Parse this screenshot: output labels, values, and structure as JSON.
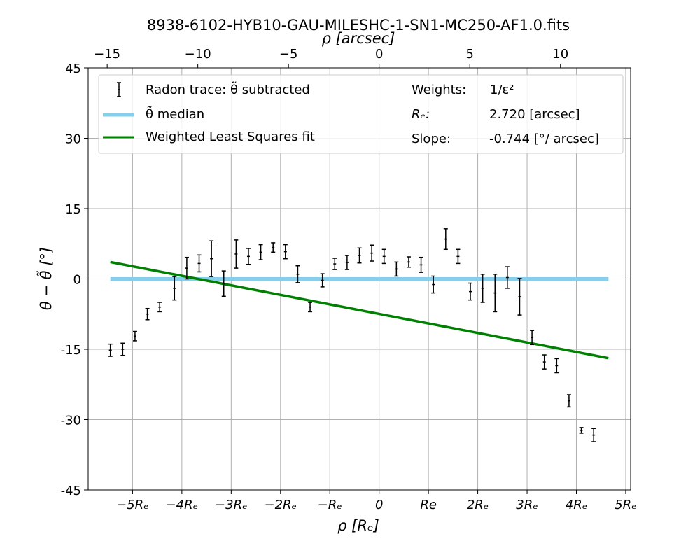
{
  "chart_data": {
    "type": "scatter",
    "title": "8938-6102-HYB10-GAU-MILESHC-1-SN1-MC250-AF1.0.fits",
    "top_axis": {
      "label": "ρ [arcsec]",
      "ticks": [
        {
          "value": -15,
          "label": "−15"
        },
        {
          "value": -10,
          "label": "−10"
        },
        {
          "value": -5,
          "label": "−5"
        },
        {
          "value": 0,
          "label": "0"
        },
        {
          "value": 5,
          "label": "5"
        },
        {
          "value": 10,
          "label": "10"
        }
      ]
    },
    "xlabel": "ρ [Rₑ]",
    "ylabel": "θ − θ̃ [°]",
    "xlim": [
      -5.9,
      5.1
    ],
    "ylim": [
      -45,
      45
    ],
    "x_ticks": [
      {
        "value": -5,
        "label": "−5Rₑ"
      },
      {
        "value": -4,
        "label": "−4Rₑ"
      },
      {
        "value": -3,
        "label": "−3Rₑ"
      },
      {
        "value": -2,
        "label": "−2Rₑ"
      },
      {
        "value": -1,
        "label": "−Rₑ"
      },
      {
        "value": 0,
        "label": "0"
      },
      {
        "value": 1,
        "label": "Re"
      },
      {
        "value": 2,
        "label": "2Rₑ"
      },
      {
        "value": 3,
        "label": "3Rₑ"
      },
      {
        "value": 4,
        "label": "4Rₑ"
      },
      {
        "value": 5,
        "label": "5Rₑ"
      }
    ],
    "y_ticks": [
      {
        "value": 45,
        "label": "45"
      },
      {
        "value": 30,
        "label": "30"
      },
      {
        "value": 15,
        "label": "15"
      },
      {
        "value": 0,
        "label": "0"
      },
      {
        "value": -15,
        "label": "-15"
      },
      {
        "value": -30,
        "label": "-30"
      },
      {
        "value": -45,
        "label": "-45"
      }
    ],
    "grid": true,
    "legend_position": "top",
    "series": [
      {
        "name": "Radon trace: θ̃ subtracted",
        "kind": "errorbar",
        "color": "#000000",
        "points": [
          {
            "x": -5.45,
            "y": -15.2,
            "err": 1.3
          },
          {
            "x": -5.2,
            "y": -15.0,
            "err": 1.3
          },
          {
            "x": -4.95,
            "y": -12.2,
            "err": 1.0
          },
          {
            "x": -4.7,
            "y": -7.5,
            "err": 1.2
          },
          {
            "x": -4.45,
            "y": -6.0,
            "err": 1.0
          },
          {
            "x": -4.15,
            "y": -2.0,
            "err": 2.5
          },
          {
            "x": -3.9,
            "y": 2.3,
            "err": 2.3
          },
          {
            "x": -3.65,
            "y": 3.3,
            "err": 1.8
          },
          {
            "x": -3.4,
            "y": 4.3,
            "err": 3.8
          },
          {
            "x": -3.15,
            "y": -1.0,
            "err": 2.7
          },
          {
            "x": -2.9,
            "y": 5.3,
            "err": 3.0
          },
          {
            "x": -2.65,
            "y": 4.8,
            "err": 1.7
          },
          {
            "x": -2.4,
            "y": 5.7,
            "err": 1.6
          },
          {
            "x": -2.15,
            "y": 6.7,
            "err": 1.0
          },
          {
            "x": -1.9,
            "y": 5.8,
            "err": 1.5
          },
          {
            "x": -1.65,
            "y": 1.0,
            "err": 1.8
          },
          {
            "x": -1.4,
            "y": -6.0,
            "err": 1.0
          },
          {
            "x": -1.15,
            "y": -0.3,
            "err": 1.4
          },
          {
            "x": -0.9,
            "y": 3.2,
            "err": 1.2
          },
          {
            "x": -0.65,
            "y": 3.5,
            "err": 1.5
          },
          {
            "x": -0.4,
            "y": 5.0,
            "err": 1.6
          },
          {
            "x": -0.15,
            "y": 5.5,
            "err": 1.7
          },
          {
            "x": 0.1,
            "y": 4.8,
            "err": 1.5
          },
          {
            "x": 0.35,
            "y": 2.1,
            "err": 1.5
          },
          {
            "x": 0.6,
            "y": 3.6,
            "err": 1.1
          },
          {
            "x": 0.85,
            "y": 3.0,
            "err": 1.6
          },
          {
            "x": 1.1,
            "y": -1.2,
            "err": 1.8
          },
          {
            "x": 1.35,
            "y": 8.5,
            "err": 2.2
          },
          {
            "x": 1.6,
            "y": 4.8,
            "err": 1.5
          },
          {
            "x": 1.85,
            "y": -2.7,
            "err": 1.8
          },
          {
            "x": 2.1,
            "y": -2.0,
            "err": 3.0
          },
          {
            "x": 2.35,
            "y": -3.0,
            "err": 4.0
          },
          {
            "x": 2.6,
            "y": 0.3,
            "err": 2.3
          },
          {
            "x": 2.85,
            "y": -3.8,
            "err": 3.9
          },
          {
            "x": 3.1,
            "y": -12.5,
            "err": 1.5
          },
          {
            "x": 3.35,
            "y": -17.7,
            "err": 1.5
          },
          {
            "x": 3.6,
            "y": -18.5,
            "err": 1.5
          },
          {
            "x": 3.85,
            "y": -26.0,
            "err": 1.3
          },
          {
            "x": 4.1,
            "y": -32.3,
            "err": 0.6
          },
          {
            "x": 4.35,
            "y": -33.3,
            "err": 1.4
          }
        ]
      },
      {
        "name": "θ̃ median",
        "kind": "line",
        "color": "#87ceeb",
        "x": [
          -5.45,
          4.65
        ],
        "y": [
          0,
          0
        ]
      },
      {
        "name": "Weighted Least Squares fit",
        "kind": "line",
        "color": "#008000",
        "x": [
          -5.45,
          4.65
        ],
        "y": [
          3.6,
          -16.9
        ]
      }
    ],
    "annotations": {
      "weights_label": "Weights:",
      "weights_value": "1/ε²",
      "re_label": "Rₑ:",
      "re_value": "2.720 [arcsec]",
      "slope_label": "Slope:",
      "slope_value": "-0.744 [°/ arcsec]"
    }
  }
}
